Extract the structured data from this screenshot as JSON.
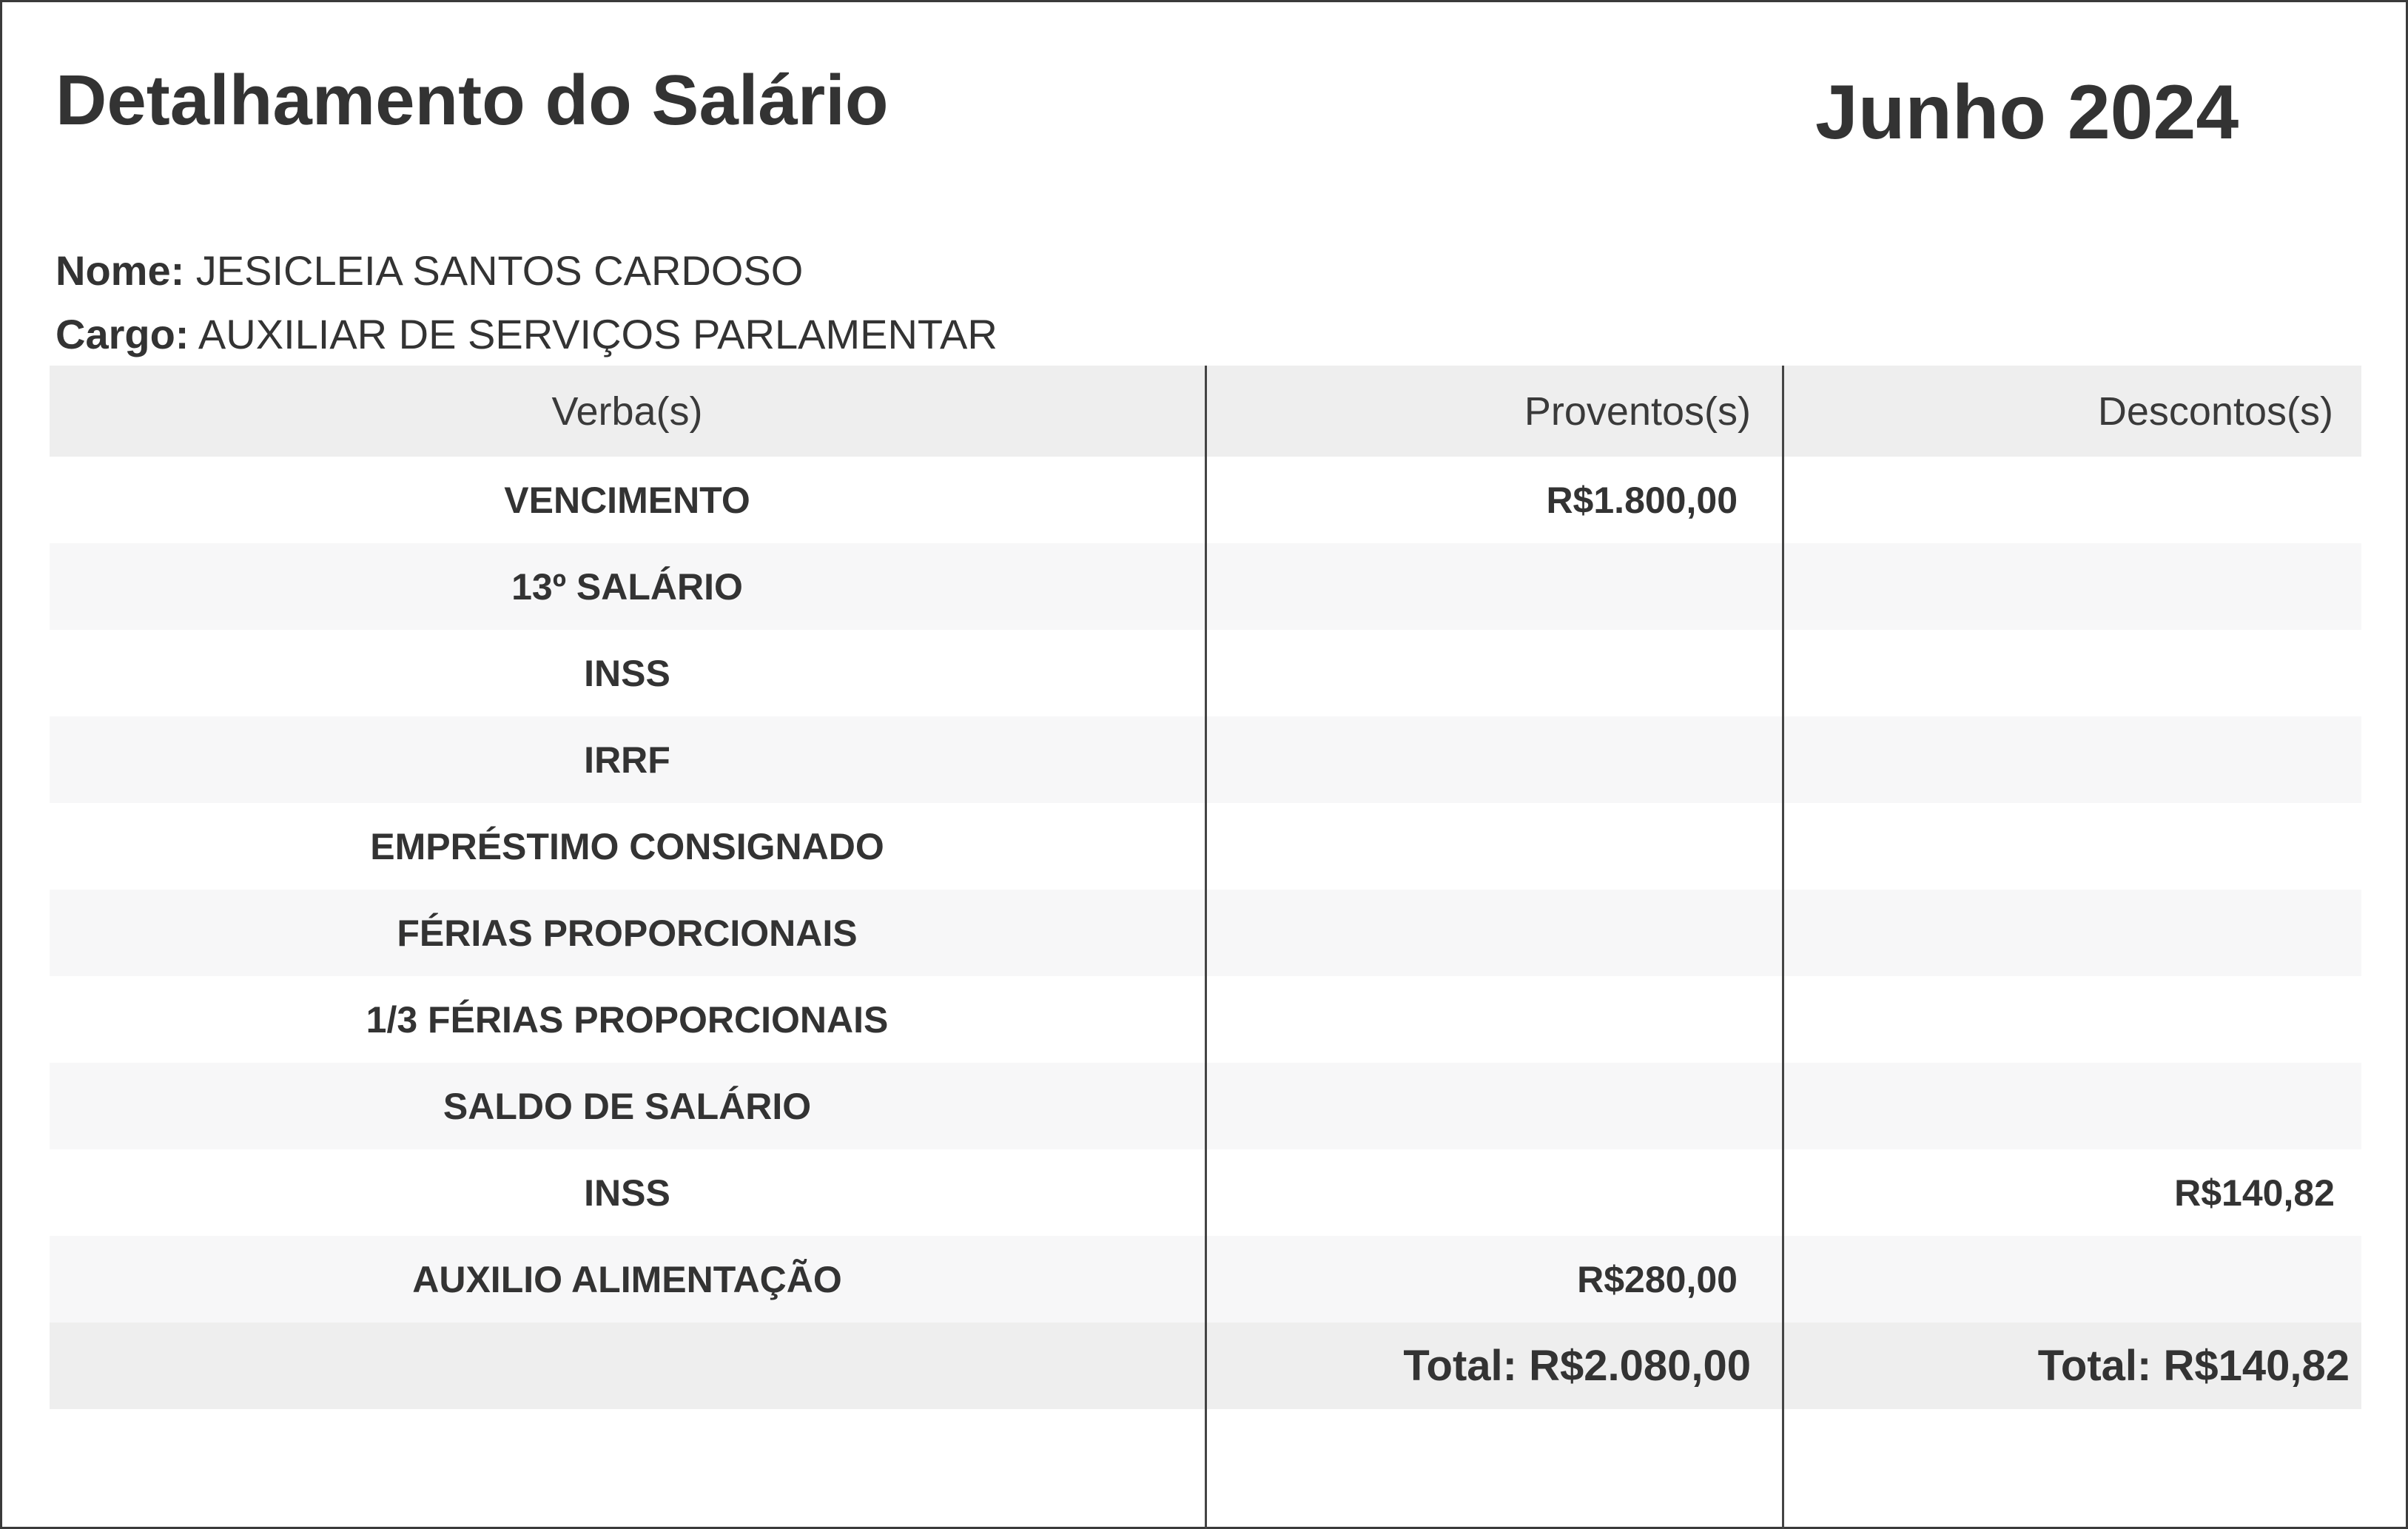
{
  "header": {
    "title": "Detalhamento do Salário",
    "period": "Junho 2024"
  },
  "employee": {
    "name_label": "Nome:",
    "name": "JESICLEIA SANTOS CARDOSO",
    "role_label": "Cargo:",
    "role": "AUXILIAR DE SERVIÇOS PARLAMENTAR"
  },
  "table": {
    "columns": [
      "Verba(s)",
      "Proventos(s)",
      "Descontos(s)"
    ],
    "rows": [
      {
        "verba": "VENCIMENTO",
        "proventos": "R$1.800,00",
        "descontos": ""
      },
      {
        "verba": "13º SALÁRIO",
        "proventos": "",
        "descontos": ""
      },
      {
        "verba": "INSS",
        "proventos": "",
        "descontos": ""
      },
      {
        "verba": "IRRF",
        "proventos": "",
        "descontos": ""
      },
      {
        "verba": "EMPRÉSTIMO CONSIGNADO",
        "proventos": "",
        "descontos": ""
      },
      {
        "verba": "FÉRIAS PROPORCIONAIS",
        "proventos": "",
        "descontos": ""
      },
      {
        "verba": "1/3 FÉRIAS PROPORCIONAIS",
        "proventos": "",
        "descontos": ""
      },
      {
        "verba": "SALDO DE SALÁRIO",
        "proventos": "",
        "descontos": ""
      },
      {
        "verba": "INSS",
        "proventos": "",
        "descontos": "R$140,82"
      },
      {
        "verba": "AUXILIO ALIMENTAÇÃO",
        "proventos": "R$280,00",
        "descontos": ""
      }
    ],
    "totals": {
      "proventos": "Total: R$2.080,00",
      "descontos": "Total: R$140,82"
    }
  }
}
